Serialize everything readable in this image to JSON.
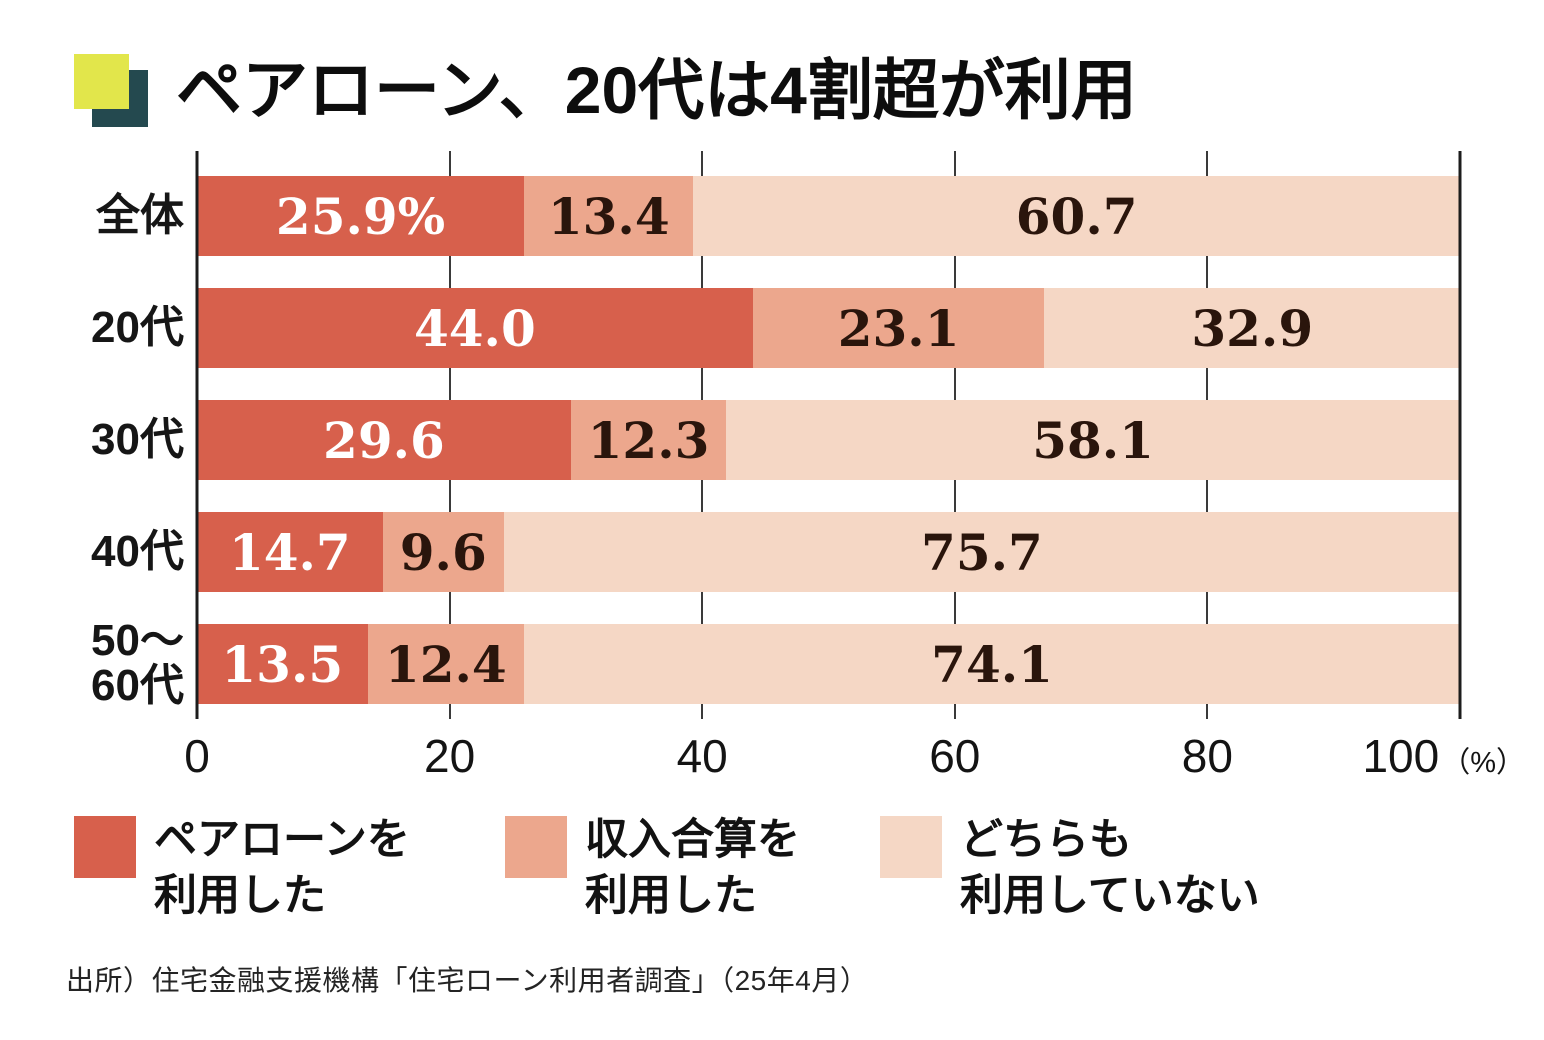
{
  "title": {
    "text": "ペアローン、20代は4割超が利用"
  },
  "icon": {
    "front_color": "#e2e64b",
    "back_color": "#24494f"
  },
  "chart_data": {
    "type": "bar",
    "orientation": "horizontal",
    "stacked": true,
    "unit": "%",
    "title": "ペアローン、20代は4割超が利用",
    "categories": [
      "全体",
      "20代",
      "30代",
      "40代",
      "50〜60代"
    ],
    "series": [
      {
        "name": "ペアローンを利用した",
        "color": "#d7604c",
        "values": [
          25.9,
          44.0,
          29.6,
          14.7,
          13.5
        ]
      },
      {
        "name": "収入合算を利用した",
        "color": "#eca78d",
        "values": [
          13.4,
          23.1,
          12.3,
          9.6,
          12.4
        ]
      },
      {
        "name": "どちらも利用していない",
        "color": "#f5d7c5",
        "values": [
          60.7,
          32.9,
          58.1,
          75.7,
          74.1
        ]
      }
    ],
    "xlim": [
      0,
      100
    ],
    "xticks": [
      0,
      20,
      40,
      60,
      80,
      100
    ],
    "grid": "vertical",
    "legend_position": "bottom"
  },
  "row_labels": [
    "全体",
    "20代",
    "30代",
    "40代",
    "50〜\n60代"
  ],
  "value_labels": [
    [
      "25.9%",
      "13.4",
      "60.7"
    ],
    [
      "44.0",
      "23.1",
      "32.9"
    ],
    [
      "29.6",
      "12.3",
      "58.1"
    ],
    [
      "14.7",
      "9.6",
      "75.7"
    ],
    [
      "13.5",
      "12.4",
      "74.1"
    ]
  ],
  "axis": {
    "ticks": [
      "0",
      "20",
      "40",
      "60",
      "80",
      "100"
    ],
    "unit_label": "（%）"
  },
  "legend": [
    {
      "label": "ペアローンを\n利用した",
      "color": "#d7604c"
    },
    {
      "label": "収入合算を\n利用した",
      "color": "#eca78d"
    },
    {
      "label": "どちらも\n利用していない",
      "color": "#f5d7c5"
    }
  ],
  "source": "出所）住宅金融支援機構「住宅ローン利用者調査」（25年4月）"
}
